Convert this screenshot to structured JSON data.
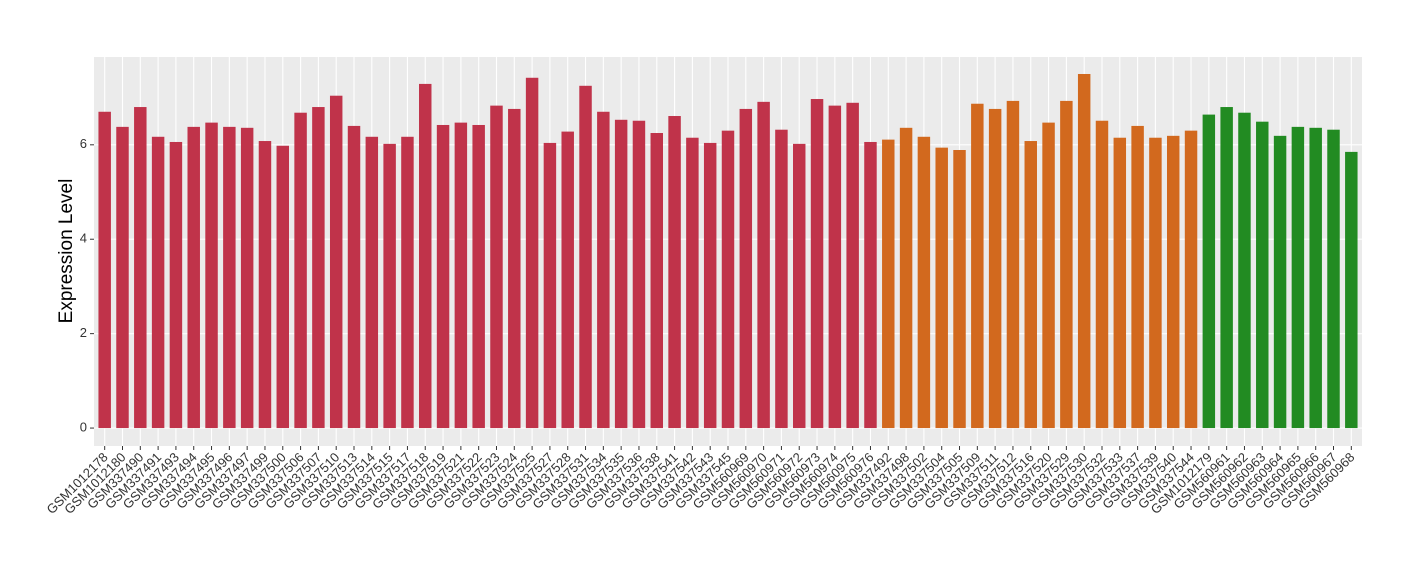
{
  "chart_data": {
    "type": "bar",
    "y_label": "Expression Level",
    "categories": [
      "GSM1012178",
      "GSM1012180",
      "GSM337490",
      "GSM337491",
      "GSM337493",
      "GSM337494",
      "GSM337495",
      "GSM337496",
      "GSM337497",
      "GSM337499",
      "GSM337500",
      "GSM337506",
      "GSM337507",
      "GSM337510",
      "GSM337513",
      "GSM337514",
      "GSM337515",
      "GSM337517",
      "GSM337518",
      "GSM337519",
      "GSM337521",
      "GSM337522",
      "GSM337523",
      "GSM337524",
      "GSM337525",
      "GSM337527",
      "GSM337528",
      "GSM337531",
      "GSM337534",
      "GSM337535",
      "GSM337536",
      "GSM337538",
      "GSM337541",
      "GSM337542",
      "GSM337543",
      "GSM337545",
      "GSM560969",
      "GSM560970",
      "GSM560971",
      "GSM560972",
      "GSM560973",
      "GSM560974",
      "GSM560975",
      "GSM560976",
      "GSM337492",
      "GSM337498",
      "GSM337502",
      "GSM337504",
      "GSM337505",
      "GSM337509",
      "GSM337511",
      "GSM337512",
      "GSM337516",
      "GSM337520",
      "GSM337529",
      "GSM337530",
      "GSM337532",
      "GSM337533",
      "GSM337537",
      "GSM337539",
      "GSM337540",
      "GSM337544",
      "GSM1012179",
      "GSM560961",
      "GSM560962",
      "GSM560963",
      "GSM560964",
      "GSM560965",
      "GSM560966",
      "GSM560967",
      "GSM560968"
    ],
    "values": [
      6.7,
      6.38,
      6.8,
      6.17,
      6.06,
      6.38,
      6.47,
      6.38,
      6.36,
      6.08,
      5.98,
      6.68,
      6.8,
      7.04,
      6.4,
      6.17,
      6.02,
      6.17,
      7.29,
      6.42,
      6.47,
      6.42,
      6.83,
      6.76,
      7.42,
      6.04,
      6.28,
      7.25,
      6.7,
      6.53,
      6.51,
      6.25,
      6.61,
      6.15,
      6.04,
      6.3,
      6.76,
      6.91,
      6.32,
      6.02,
      6.97,
      6.83,
      6.89,
      6.06,
      6.11,
      6.36,
      6.17,
      5.94,
      5.89,
      6.87,
      6.76,
      6.93,
      6.08,
      6.47,
      6.93,
      7.5,
      6.51,
      6.15,
      6.4,
      6.15,
      6.19,
      6.3,
      6.64,
      6.8,
      6.68,
      6.49,
      6.19,
      6.38,
      6.36,
      6.32,
      5.85
    ],
    "colors": [
      "#c0334a",
      "#c0334a",
      "#c0334a",
      "#c0334a",
      "#c0334a",
      "#c0334a",
      "#c0334a",
      "#c0334a",
      "#c0334a",
      "#c0334a",
      "#c0334a",
      "#c0334a",
      "#c0334a",
      "#c0334a",
      "#c0334a",
      "#c0334a",
      "#c0334a",
      "#c0334a",
      "#c0334a",
      "#c0334a",
      "#c0334a",
      "#c0334a",
      "#c0334a",
      "#c0334a",
      "#c0334a",
      "#c0334a",
      "#c0334a",
      "#c0334a",
      "#c0334a",
      "#c0334a",
      "#c0334a",
      "#c0334a",
      "#c0334a",
      "#c0334a",
      "#c0334a",
      "#c0334a",
      "#c0334a",
      "#c0334a",
      "#c0334a",
      "#c0334a",
      "#c0334a",
      "#c0334a",
      "#c0334a",
      "#c0334a",
      "#d2691e",
      "#d2691e",
      "#d2691e",
      "#d2691e",
      "#d2691e",
      "#d2691e",
      "#d2691e",
      "#d2691e",
      "#d2691e",
      "#d2691e",
      "#d2691e",
      "#d2691e",
      "#d2691e",
      "#d2691e",
      "#d2691e",
      "#d2691e",
      "#d2691e",
      "#d2691e",
      "#228b22",
      "#228b22",
      "#228b22",
      "#228b22",
      "#228b22",
      "#228b22",
      "#228b22",
      "#228b22",
      "#228b22"
    ],
    "ylim": [
      -0.38,
      7.86
    ],
    "yticks": [
      0,
      2,
      4,
      6
    ],
    "grid": true
  }
}
